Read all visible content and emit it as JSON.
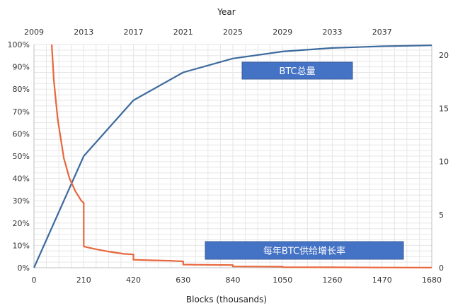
{
  "chart_data": {
    "type": "line",
    "title": "",
    "x_top": {
      "label": "Year",
      "ticks": [
        "2009",
        "2013",
        "2017",
        "2021",
        "2025",
        "2029",
        "2033",
        "2037"
      ]
    },
    "x_bottom": {
      "label": "Blocks (thousands)",
      "ticks": [
        "0",
        "210",
        "420",
        "630",
        "840",
        "1050",
        "1260",
        "1470",
        "1680"
      ],
      "range": [
        0,
        1680
      ]
    },
    "y_left": {
      "ticks": [
        "0%",
        "10%",
        "20%",
        "30%",
        "40%",
        "50%",
        "60%",
        "70%",
        "80%",
        "90%",
        "100%"
      ],
      "range": [
        0,
        100
      ]
    },
    "y_right": {
      "ticks": [
        "0",
        "5",
        "10",
        "15",
        "20"
      ],
      "range": [
        0,
        21
      ]
    },
    "grid": true,
    "series": [
      {
        "name": "BTC总量",
        "axis": "left",
        "color": "#3d6a9e",
        "points": [
          [
            0,
            0
          ],
          [
            210,
            50
          ],
          [
            420,
            75
          ],
          [
            630,
            87.5
          ],
          [
            840,
            93.75
          ],
          [
            1050,
            96.88
          ],
          [
            1260,
            98.44
          ],
          [
            1470,
            99.22
          ],
          [
            1680,
            99.61
          ]
        ]
      },
      {
        "name": "每年BTC供给增长率",
        "axis": "right",
        "color": "#e8663c",
        "points": [
          [
            75,
            21
          ],
          [
            84,
            17.6
          ],
          [
            100,
            14
          ],
          [
            126,
            10.3
          ],
          [
            150,
            8.4
          ],
          [
            175,
            7.2
          ],
          [
            200,
            6.3
          ],
          [
            210,
            6.1
          ],
          [
            210,
            2.0
          ],
          [
            260,
            1.75
          ],
          [
            320,
            1.5
          ],
          [
            380,
            1.3
          ],
          [
            420,
            1.25
          ],
          [
            420,
            0.75
          ],
          [
            500,
            0.7
          ],
          [
            580,
            0.65
          ],
          [
            630,
            0.6
          ],
          [
            630,
            0.3
          ],
          [
            700,
            0.28
          ],
          [
            840,
            0.25
          ],
          [
            840,
            0.12
          ],
          [
            1050,
            0.1
          ],
          [
            1050,
            0.05
          ],
          [
            1260,
            0.04
          ],
          [
            1470,
            0.02
          ],
          [
            1680,
            0.01
          ]
        ]
      }
    ],
    "annotations": [
      {
        "text": "BTC总量",
        "series": 0,
        "color": "#4472c4"
      },
      {
        "text": "每年BTC供给增长率",
        "series": 1,
        "color": "#4472c4"
      }
    ]
  }
}
